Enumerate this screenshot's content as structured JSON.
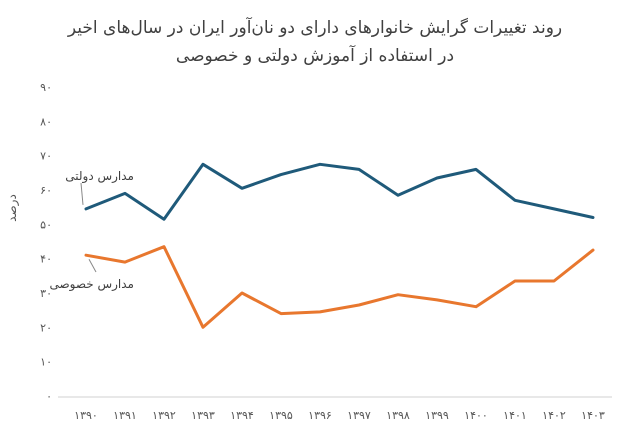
{
  "chart_data": {
    "type": "line",
    "title_lines": [
      "روند تغییرات گرایش خانوارهای دارای دو نان‌آور ایران در سال‌های اخیر",
      "در استفاده از آموزش دولتی و خصوصی"
    ],
    "ylabel": "درصد",
    "xlabel": "",
    "ylim": [
      0,
      90
    ],
    "yticks": [
      0,
      10,
      20,
      30,
      40,
      50,
      60,
      70,
      80,
      90
    ],
    "ytick_labels": [
      "۰",
      "۱۰",
      "۲۰",
      "۳۰",
      "۴۰",
      "۵۰",
      "۶۰",
      "۷۰",
      "۸۰",
      "۹۰"
    ],
    "categories": [
      "۱۳۹۰",
      "۱۳۹۱",
      "۱۳۹۲",
      "۱۳۹۳",
      "۱۳۹۴",
      "۱۳۹۵",
      "۱۳۹۶",
      "۱۳۹۷",
      "۱۳۹۸",
      "۱۳۹۹",
      "۱۴۰۰",
      "۱۴۰۱",
      "۱۴۰۲",
      "۱۴۰۳"
    ],
    "grid": false,
    "series": [
      {
        "name": "مدارس دولتی",
        "color": "#1f5a7a",
        "values": [
          54.5,
          59,
          51.5,
          67.5,
          60.5,
          64.5,
          67.5,
          66,
          58.5,
          63.5,
          66,
          57,
          54.5,
          52
        ]
      },
      {
        "name": "مدارس خصوصی",
        "color": "#e8772e",
        "values": [
          41,
          39,
          43.5,
          20,
          30,
          24,
          24.5,
          26.5,
          29.5,
          28,
          26,
          33.5,
          33.5,
          42.5
        ]
      }
    ]
  }
}
